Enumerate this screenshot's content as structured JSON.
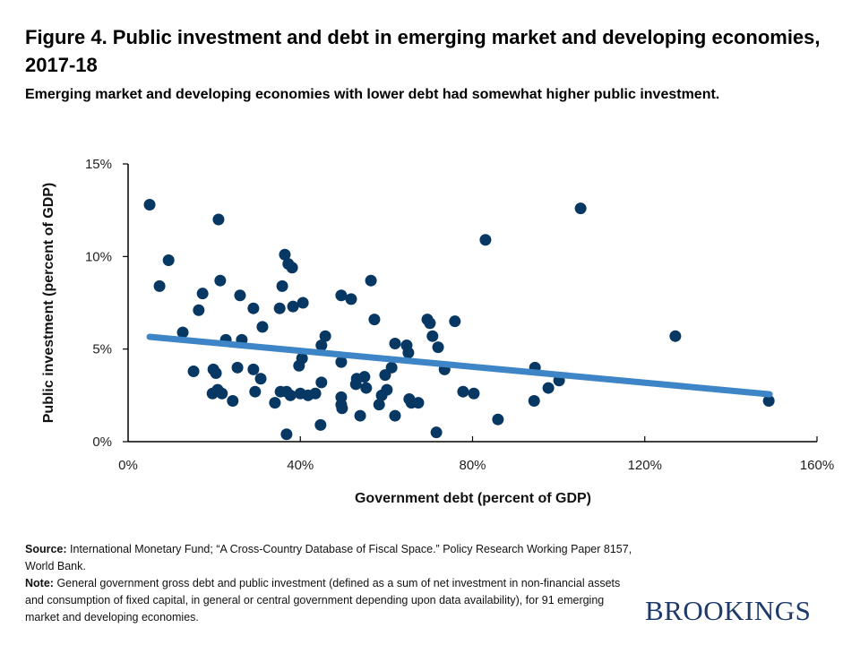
{
  "title": "Figure 4. Public investment and debt in emerging market and developing economies, 2017-18",
  "subtitle": "Emerging market and developing economies with lower debt had somewhat higher public investment.",
  "notes": {
    "source_label": "Source:",
    "source_text": "International Monetary Fund; “A Cross-Country Database of Fiscal Space.” Policy Research Working Paper 8157, World Bank.",
    "note_label": "Note:",
    "note_text": "General government gross debt and public investment (defined as a sum of net investment in non-financial assets and consumption of fixed capital, in general or central government depending upon data availability), for 91 emerging market and developing economies."
  },
  "logo": "BROOKINGS",
  "colors": {
    "points": "#073763",
    "trend": "#3d85c6"
  },
  "chart_data": {
    "type": "scatter",
    "xlabel": "Government debt (percent of GDP)",
    "ylabel": "Public investment (percent of GDP)",
    "xlim": [
      0,
      160
    ],
    "ylim": [
      0,
      15
    ],
    "xticks": [
      0,
      40,
      80,
      120,
      160
    ],
    "xtick_labels": [
      "0%",
      "40%",
      "80%",
      "120%",
      "160%"
    ],
    "yticks": [
      0,
      5,
      10,
      15
    ],
    "ytick_labels": [
      "0%",
      "5%",
      "10%",
      "15%"
    ],
    "grid": false,
    "trendline": {
      "x": [
        5,
        149
      ],
      "y": [
        5.66,
        2.56
      ]
    },
    "points": [
      [
        5.0,
        12.8
      ],
      [
        21.0,
        12.0
      ],
      [
        9.4,
        9.8
      ],
      [
        7.3,
        8.4
      ],
      [
        17.3,
        8.0
      ],
      [
        21.4,
        8.7
      ],
      [
        16.4,
        7.1
      ],
      [
        26.0,
        7.9
      ],
      [
        29.1,
        7.2
      ],
      [
        31.2,
        6.2
      ],
      [
        36.4,
        10.1
      ],
      [
        37.2,
        9.6
      ],
      [
        38.1,
        9.4
      ],
      [
        35.8,
        8.4
      ],
      [
        35.2,
        7.2
      ],
      [
        38.3,
        7.3
      ],
      [
        40.6,
        7.5
      ],
      [
        12.7,
        5.9
      ],
      [
        22.7,
        5.5
      ],
      [
        26.4,
        5.5
      ],
      [
        15.2,
        3.8
      ],
      [
        19.8,
        3.9
      ],
      [
        20.4,
        3.7
      ],
      [
        25.4,
        4.0
      ],
      [
        29.1,
        3.9
      ],
      [
        30.8,
        3.4
      ],
      [
        29.5,
        2.7
      ],
      [
        19.6,
        2.6
      ],
      [
        20.8,
        2.8
      ],
      [
        21.8,
        2.6
      ],
      [
        24.3,
        2.2
      ],
      [
        34.1,
        2.1
      ],
      [
        35.4,
        2.7
      ],
      [
        36.8,
        2.7
      ],
      [
        37.7,
        2.5
      ],
      [
        40.0,
        2.6
      ],
      [
        41.8,
        2.5
      ],
      [
        43.5,
        2.6
      ],
      [
        36.8,
        0.4
      ],
      [
        44.7,
        0.9
      ],
      [
        39.7,
        4.1
      ],
      [
        40.4,
        4.5
      ],
      [
        44.9,
        3.2
      ],
      [
        44.9,
        5.2
      ],
      [
        45.8,
        5.7
      ],
      [
        49.5,
        7.9
      ],
      [
        51.8,
        7.7
      ],
      [
        57.2,
        6.6
      ],
      [
        56.4,
        8.7
      ],
      [
        49.5,
        4.3
      ],
      [
        49.5,
        2.4
      ],
      [
        49.5,
        2.0
      ],
      [
        49.7,
        1.8
      ],
      [
        53.1,
        3.4
      ],
      [
        52.9,
        3.1
      ],
      [
        54.9,
        3.5
      ],
      [
        55.3,
        2.9
      ],
      [
        53.9,
        1.4
      ],
      [
        59.7,
        3.6
      ],
      [
        61.2,
        4.0
      ],
      [
        60.1,
        2.8
      ],
      [
        58.9,
        2.5
      ],
      [
        58.3,
        2.0
      ],
      [
        62.0,
        1.4
      ],
      [
        62.0,
        5.3
      ],
      [
        64.7,
        5.2
      ],
      [
        65.1,
        4.8
      ],
      [
        65.3,
        2.3
      ],
      [
        65.8,
        2.1
      ],
      [
        67.4,
        2.1
      ],
      [
        69.5,
        6.6
      ],
      [
        70.1,
        6.4
      ],
      [
        70.7,
        5.7
      ],
      [
        72.0,
        5.1
      ],
      [
        73.5,
        3.9
      ],
      [
        71.6,
        0.5
      ],
      [
        75.9,
        6.5
      ],
      [
        77.8,
        2.7
      ],
      [
        80.3,
        2.6
      ],
      [
        85.9,
        1.2
      ],
      [
        83.0,
        10.9
      ],
      [
        105.1,
        12.6
      ],
      [
        94.5,
        4.0
      ],
      [
        94.3,
        2.2
      ],
      [
        97.6,
        2.9
      ],
      [
        100.1,
        3.3
      ],
      [
        127.1,
        5.7
      ],
      [
        148.8,
        2.2
      ]
    ]
  }
}
